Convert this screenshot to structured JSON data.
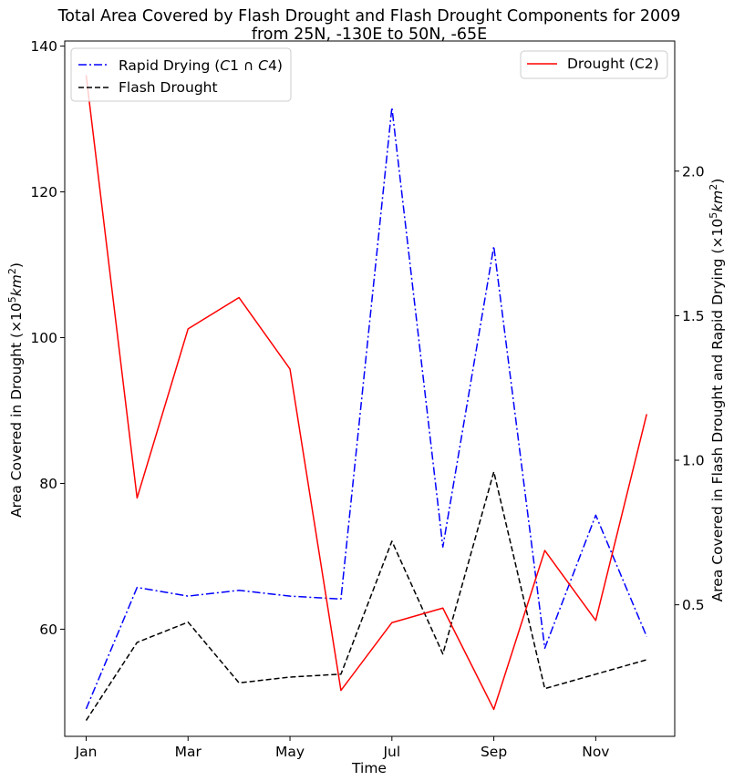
{
  "chart_data": {
    "type": "line",
    "title": "Total Area Covered by Flash Drought and Flash Drought Components for 2009",
    "subtitle": "from 25N, -130E to 50N, -65E",
    "xlabel": "Time",
    "ylabel_left": "Area Covered in Drought (×10⁵km²)",
    "ylabel_right": "Area Covered in Flash Drought and Rapid Drying (×10⁵km²)",
    "x": [
      1,
      2,
      3,
      4,
      5,
      6,
      7,
      8,
      9,
      10,
      11,
      12
    ],
    "xticks": [
      {
        "pos": 1,
        "label": "Jan"
      },
      {
        "pos": 3,
        "label": "Mar"
      },
      {
        "pos": 5,
        "label": "May"
      },
      {
        "pos": 7,
        "label": "Jul"
      },
      {
        "pos": 9,
        "label": "Sep"
      },
      {
        "pos": 11,
        "label": "Nov"
      }
    ],
    "xlim": [
      0.58,
      12.55
    ],
    "ylim_left": [
      45.3,
      140.7
    ],
    "yticks_left": [
      60,
      80,
      100,
      120,
      140
    ],
    "ylim_right": [
      0.045,
      2.45
    ],
    "yticks_right": [
      0.5,
      1.0,
      1.5,
      2.0
    ],
    "grid": false,
    "legend_left_position": "upper-left",
    "legend_right_position": "upper-right",
    "series": [
      {
        "name": "Rapid Drying (C1 ∩ C4)",
        "axis": "right",
        "color": "#0000ff",
        "style": "dashdot",
        "values": [
          0.14,
          0.56,
          0.53,
          0.55,
          0.53,
          0.52,
          2.22,
          0.7,
          1.74,
          0.35,
          0.81,
          0.39
        ]
      },
      {
        "name": "Flash Drought",
        "axis": "right",
        "color": "#000000",
        "style": "dashed",
        "values": [
          0.1,
          0.37,
          0.44,
          0.23,
          0.25,
          0.26,
          0.72,
          0.33,
          0.96,
          0.21,
          0.26,
          0.31
        ]
      },
      {
        "name": "Drought (C2)",
        "axis": "left",
        "color": "#ff0000",
        "style": "solid",
        "values": [
          136.0,
          78.0,
          101.2,
          105.5,
          95.7,
          51.6,
          60.9,
          62.9,
          49.0,
          70.8,
          61.2,
          89.5
        ]
      }
    ],
    "legend_left_entries": [
      {
        "name_prefix": "Rapid Drying (",
        "c1": "C",
        "n1": "1",
        "cap": " ∩ ",
        "c2": "C",
        "n2": "4",
        "suffix": ")"
      },
      {
        "name": "Flash Drought"
      }
    ],
    "legend_right_entries": [
      {
        "name": "Drought (C2)"
      }
    ]
  }
}
